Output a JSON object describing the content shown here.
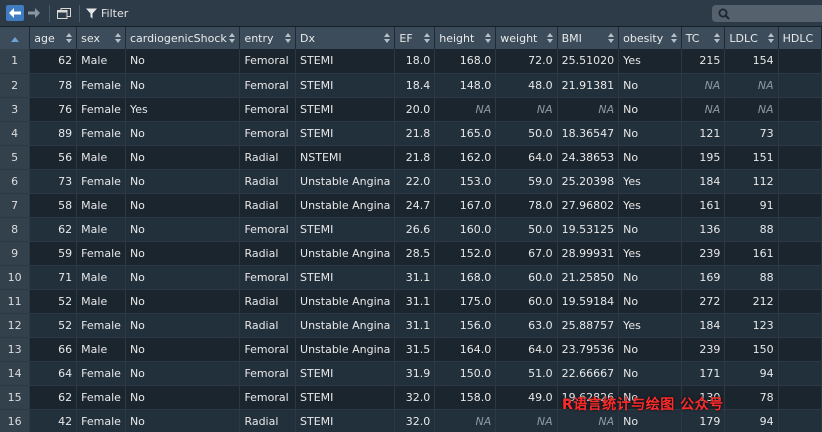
{
  "toolbar": {
    "filter_label": "Filter",
    "search_placeholder": ""
  },
  "columns": [
    "age",
    "sex",
    "cardiogenicShock",
    "entry",
    "Dx",
    "EF",
    "height",
    "weight",
    "BMI",
    "obesity",
    "TC",
    "LDLC",
    "HDLC"
  ],
  "rows": [
    {
      "n": "1",
      "age": "62",
      "sex": "Male",
      "cardiogenicShock": "No",
      "entry": "Femoral",
      "Dx": "STEMI",
      "EF": "18.0",
      "height": "168.0",
      "weight": "72.0",
      "BMI": "25.51020",
      "obesity": "Yes",
      "TC": "215",
      "LDLC": "154",
      "HDLC": ""
    },
    {
      "n": "2",
      "age": "78",
      "sex": "Female",
      "cardiogenicShock": "No",
      "entry": "Femoral",
      "Dx": "STEMI",
      "EF": "18.4",
      "height": "148.0",
      "weight": "48.0",
      "BMI": "21.91381",
      "obesity": "No",
      "TC": "NA",
      "LDLC": "NA",
      "HDLC": ""
    },
    {
      "n": "3",
      "age": "76",
      "sex": "Female",
      "cardiogenicShock": "Yes",
      "entry": "Femoral",
      "Dx": "STEMI",
      "EF": "20.0",
      "height": "NA",
      "weight": "NA",
      "BMI": "NA",
      "obesity": "No",
      "TC": "NA",
      "LDLC": "NA",
      "HDLC": ""
    },
    {
      "n": "4",
      "age": "89",
      "sex": "Female",
      "cardiogenicShock": "No",
      "entry": "Femoral",
      "Dx": "STEMI",
      "EF": "21.8",
      "height": "165.0",
      "weight": "50.0",
      "BMI": "18.36547",
      "obesity": "No",
      "TC": "121",
      "LDLC": "73",
      "HDLC": ""
    },
    {
      "n": "5",
      "age": "56",
      "sex": "Male",
      "cardiogenicShock": "No",
      "entry": "Radial",
      "Dx": "NSTEMI",
      "EF": "21.8",
      "height": "162.0",
      "weight": "64.0",
      "BMI": "24.38653",
      "obesity": "No",
      "TC": "195",
      "LDLC": "151",
      "HDLC": ""
    },
    {
      "n": "6",
      "age": "73",
      "sex": "Female",
      "cardiogenicShock": "No",
      "entry": "Radial",
      "Dx": "Unstable Angina",
      "EF": "22.0",
      "height": "153.0",
      "weight": "59.0",
      "BMI": "25.20398",
      "obesity": "Yes",
      "TC": "184",
      "LDLC": "112",
      "HDLC": ""
    },
    {
      "n": "7",
      "age": "58",
      "sex": "Male",
      "cardiogenicShock": "No",
      "entry": "Radial",
      "Dx": "Unstable Angina",
      "EF": "24.7",
      "height": "167.0",
      "weight": "78.0",
      "BMI": "27.96802",
      "obesity": "Yes",
      "TC": "161",
      "LDLC": "91",
      "HDLC": ""
    },
    {
      "n": "8",
      "age": "62",
      "sex": "Male",
      "cardiogenicShock": "No",
      "entry": "Femoral",
      "Dx": "STEMI",
      "EF": "26.6",
      "height": "160.0",
      "weight": "50.0",
      "BMI": "19.53125",
      "obesity": "No",
      "TC": "136",
      "LDLC": "88",
      "HDLC": ""
    },
    {
      "n": "9",
      "age": "59",
      "sex": "Female",
      "cardiogenicShock": "No",
      "entry": "Radial",
      "Dx": "Unstable Angina",
      "EF": "28.5",
      "height": "152.0",
      "weight": "67.0",
      "BMI": "28.99931",
      "obesity": "Yes",
      "TC": "239",
      "LDLC": "161",
      "HDLC": ""
    },
    {
      "n": "10",
      "age": "71",
      "sex": "Male",
      "cardiogenicShock": "No",
      "entry": "Femoral",
      "Dx": "STEMI",
      "EF": "31.1",
      "height": "168.0",
      "weight": "60.0",
      "BMI": "21.25850",
      "obesity": "No",
      "TC": "169",
      "LDLC": "88",
      "HDLC": ""
    },
    {
      "n": "11",
      "age": "52",
      "sex": "Male",
      "cardiogenicShock": "No",
      "entry": "Radial",
      "Dx": "Unstable Angina",
      "EF": "31.1",
      "height": "175.0",
      "weight": "60.0",
      "BMI": "19.59184",
      "obesity": "No",
      "TC": "272",
      "LDLC": "212",
      "HDLC": ""
    },
    {
      "n": "12",
      "age": "52",
      "sex": "Female",
      "cardiogenicShock": "No",
      "entry": "Radial",
      "Dx": "Unstable Angina",
      "EF": "31.1",
      "height": "156.0",
      "weight": "63.0",
      "BMI": "25.88757",
      "obesity": "Yes",
      "TC": "184",
      "LDLC": "123",
      "HDLC": ""
    },
    {
      "n": "13",
      "age": "66",
      "sex": "Male",
      "cardiogenicShock": "No",
      "entry": "Femoral",
      "Dx": "Unstable Angina",
      "EF": "31.5",
      "height": "164.0",
      "weight": "64.0",
      "BMI": "23.79536",
      "obesity": "No",
      "TC": "239",
      "LDLC": "150",
      "HDLC": ""
    },
    {
      "n": "14",
      "age": "64",
      "sex": "Female",
      "cardiogenicShock": "No",
      "entry": "Femoral",
      "Dx": "STEMI",
      "EF": "31.9",
      "height": "150.0",
      "weight": "51.0",
      "BMI": "22.66667",
      "obesity": "No",
      "TC": "171",
      "LDLC": "94",
      "HDLC": ""
    },
    {
      "n": "15",
      "age": "62",
      "sex": "Female",
      "cardiogenicShock": "No",
      "entry": "Femoral",
      "Dx": "STEMI",
      "EF": "32.0",
      "height": "158.0",
      "weight": "49.0",
      "BMI": "19.62826",
      "obesity": "No",
      "TC": "130",
      "LDLC": "78",
      "HDLC": ""
    },
    {
      "n": "16",
      "age": "42",
      "sex": "Female",
      "cardiogenicShock": "No",
      "entry": "Radial",
      "Dx": "STEMI",
      "EF": "32.0",
      "height": "NA",
      "weight": "NA",
      "BMI": "NA",
      "obesity": "No",
      "TC": "179",
      "LDLC": "94",
      "HDLC": ""
    }
  ],
  "watermark": "R语言统计与绘图 公众号"
}
